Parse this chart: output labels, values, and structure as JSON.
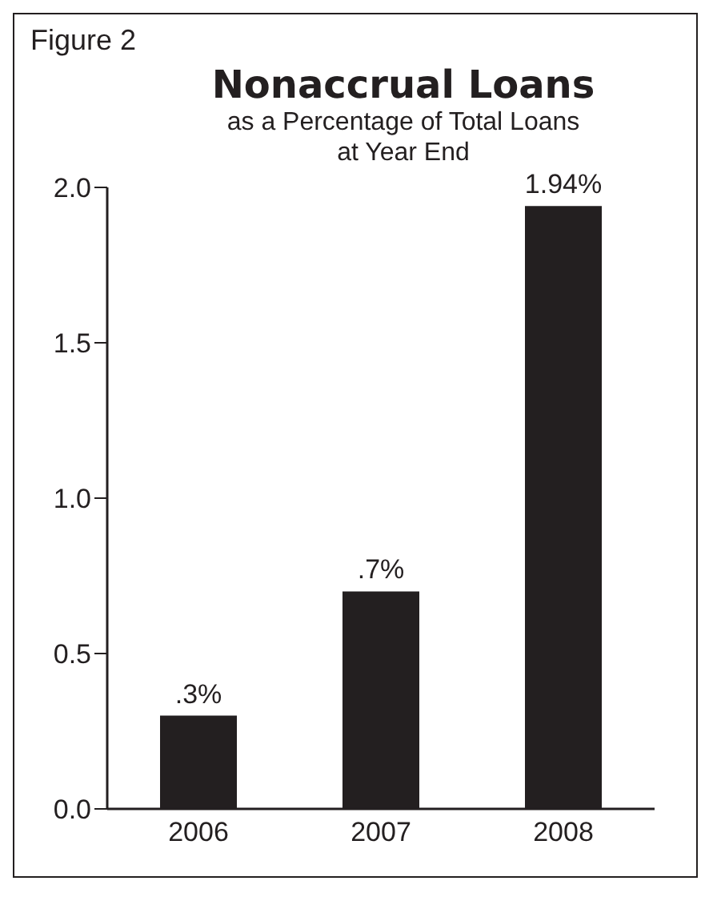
{
  "chart_data": {
    "type": "bar",
    "title": "Nonaccrual Loans",
    "subtitle": "as a Percentage of Total Loans\nat Year End",
    "annotations": [
      "Figure 2"
    ],
    "categories": [
      "2006",
      "2007",
      "2008"
    ],
    "values": [
      0.3,
      0.7,
      1.94
    ],
    "color": "#231f20",
    "value_labels": [
      ".3%",
      ".7%",
      "1.94%"
    ],
    "ylim": [
      0,
      2
    ],
    "yticks": [
      {
        "value": 0,
        "label": "0.0"
      },
      {
        "value": 0.5,
        "label": "0.5"
      },
      {
        "value": 1,
        "label": "1.0"
      },
      {
        "value": 1.5,
        "label": "1.5"
      },
      {
        "value": 2,
        "label": "2.0"
      }
    ],
    "grid": false,
    "legend": false
  }
}
